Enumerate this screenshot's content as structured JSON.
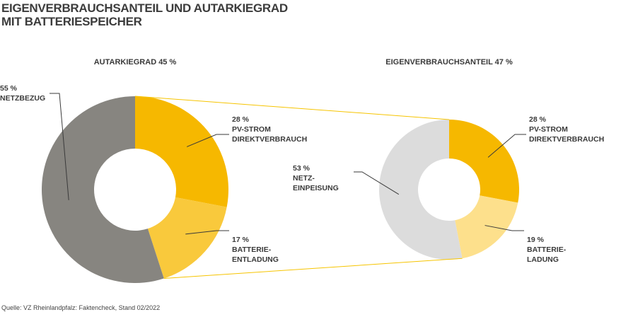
{
  "title": "EIGENVERBRAUCHSANTEIL UND AUTARKIEGRAD\nMIT BATTERIESPEICHER",
  "source": "Quelle: VZ Rheinlandpfalz: Faktencheck, Stand 02/2022",
  "chart_data": [
    {
      "type": "donut",
      "title": "AUTARKIEGRAD 45 %",
      "categories": [
        "PV-STROM\nDIREKTVERBRAUCH",
        "BATTERIE-\nENTLADUNG",
        "NETZBEZUG"
      ],
      "values": [
        28,
        17,
        55
      ],
      "value_labels": [
        "28 %",
        "17 %",
        "55 %"
      ],
      "colors": [
        "#f6b800",
        "#f9c93c",
        "#878580"
      ]
    },
    {
      "type": "donut",
      "title": "EIGENVERBRAUCHSANTEIL 47 %",
      "categories": [
        "PV-STROM\nDIREKTVERBRAUCH",
        "BATTERIE-\nLADUNG",
        "NETZ-\nEINPEISUNG"
      ],
      "values": [
        28,
        19,
        53
      ],
      "value_labels": [
        "28 %",
        "19 %",
        "53 %"
      ],
      "colors": [
        "#f6b800",
        "#fde08c",
        "#dcdcdc"
      ]
    }
  ]
}
